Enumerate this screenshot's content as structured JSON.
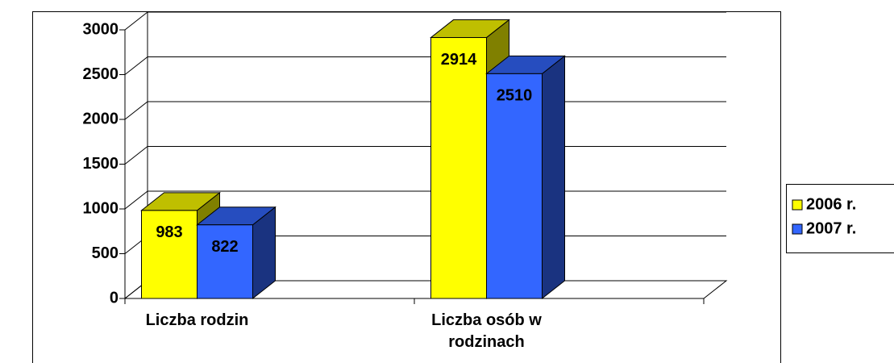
{
  "chart_data": {
    "type": "bar3d",
    "categories": [
      "Liczba rodzin",
      "Liczba osób w rodzinach"
    ],
    "series": [
      {
        "name": "2006 r.",
        "color": "#ffff00",
        "values": [
          983,
          2914
        ]
      },
      {
        "name": "2007 r.",
        "color": "#3366ff",
        "values": [
          822,
          2510
        ]
      }
    ],
    "ylim": [
      0,
      3000
    ],
    "yticks": [
      0,
      500,
      1000,
      1500,
      2000,
      2500,
      3000
    ],
    "grid": true,
    "legend": "right"
  }
}
